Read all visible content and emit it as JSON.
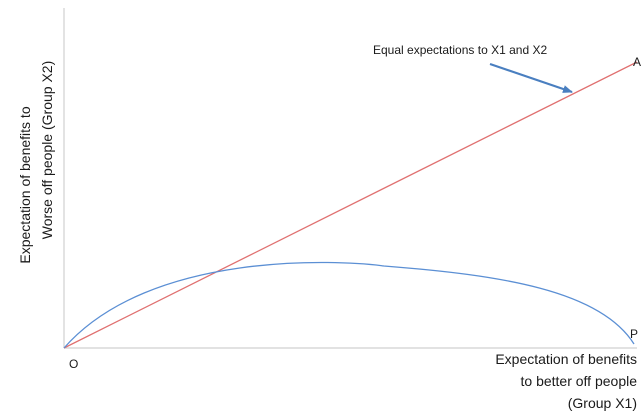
{
  "figure": {
    "ylabel_line1": "Expectation of benefits to",
    "ylabel_line2": "Worse off people (Group X2)",
    "xlabel_line1": "Expectation of benefits",
    "xlabel_line2": "to better off people",
    "xlabel_line3": "(Group X1)",
    "origin_label": "O",
    "point_a_label": "A",
    "point_p_label": "P",
    "annotation": "Equal expectations to X1 and X2"
  },
  "colors": {
    "axis": "#d0d0d0",
    "equality_line": "#e07070",
    "frontier_curve": "#5b8fd4",
    "arrow": "#4a7fc0"
  }
}
